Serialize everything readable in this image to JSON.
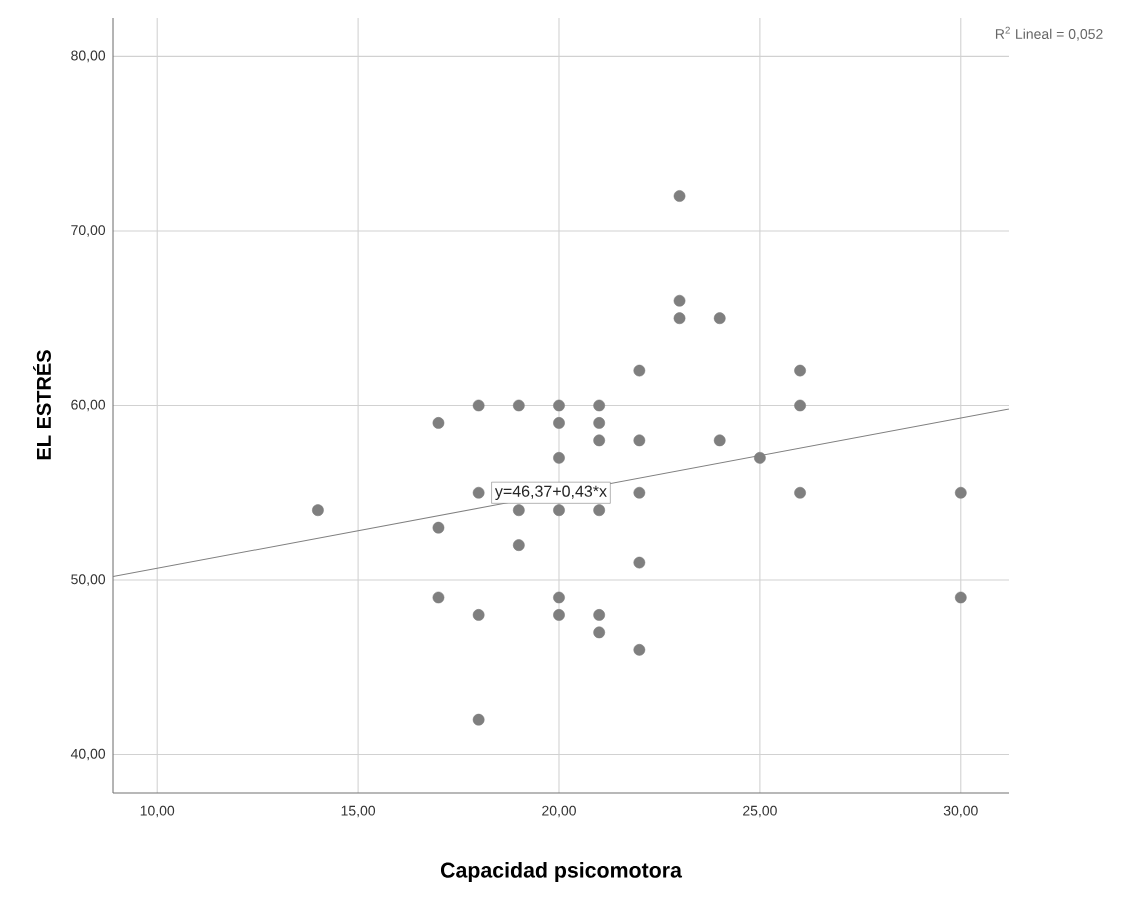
{
  "chart_data": {
    "type": "scatter",
    "xlabel": "Capacidad psicomotora",
    "ylabel": "EL ESTRÉS",
    "xlim": [
      8.9,
      31.2
    ],
    "ylim": [
      37.8,
      82.2
    ],
    "xticks": [
      {
        "value": 10,
        "label": "10,00"
      },
      {
        "value": 15,
        "label": "15,00"
      },
      {
        "value": 20,
        "label": "20,00"
      },
      {
        "value": 25,
        "label": "25,00"
      },
      {
        "value": 30,
        "label": "30,00"
      }
    ],
    "yticks": [
      {
        "value": 40,
        "label": "40,00"
      },
      {
        "value": 50,
        "label": "50,00"
      },
      {
        "value": 60,
        "label": "60,00"
      },
      {
        "value": 70,
        "label": "70,00"
      },
      {
        "value": 80,
        "label": "80,00"
      }
    ],
    "grid": true,
    "series": [
      {
        "marker": "circle",
        "color": "#7f7f7f",
        "x": [
          14,
          17,
          17,
          17,
          18,
          18,
          18,
          18,
          19,
          19,
          19,
          20,
          20,
          20,
          20,
          20,
          20,
          21,
          21,
          21,
          21,
          21,
          21,
          22,
          22,
          22,
          22,
          22,
          23,
          23,
          23,
          24,
          24,
          25,
          26,
          26,
          26,
          30,
          30
        ],
        "values": [
          54,
          59,
          53,
          49,
          60,
          55,
          48,
          42,
          60,
          54,
          52,
          60,
          59,
          57,
          54,
          49,
          48,
          60,
          59,
          58,
          54,
          48,
          47,
          62,
          58,
          55,
          51,
          46,
          72,
          66,
          65,
          65,
          58,
          57,
          62,
          60,
          55,
          55,
          49
        ]
      },
      {
        "type": "line",
        "color": "#808080",
        "x": [
          8.9,
          31.2
        ],
        "values": [
          50.2,
          59.8
        ]
      }
    ],
    "annotations": [
      {
        "text": "y=46,37+0,43*x",
        "x": 19.8,
        "y": 55
      },
      "R$^{2}$ Lineal = 0,052"
    ]
  }
}
